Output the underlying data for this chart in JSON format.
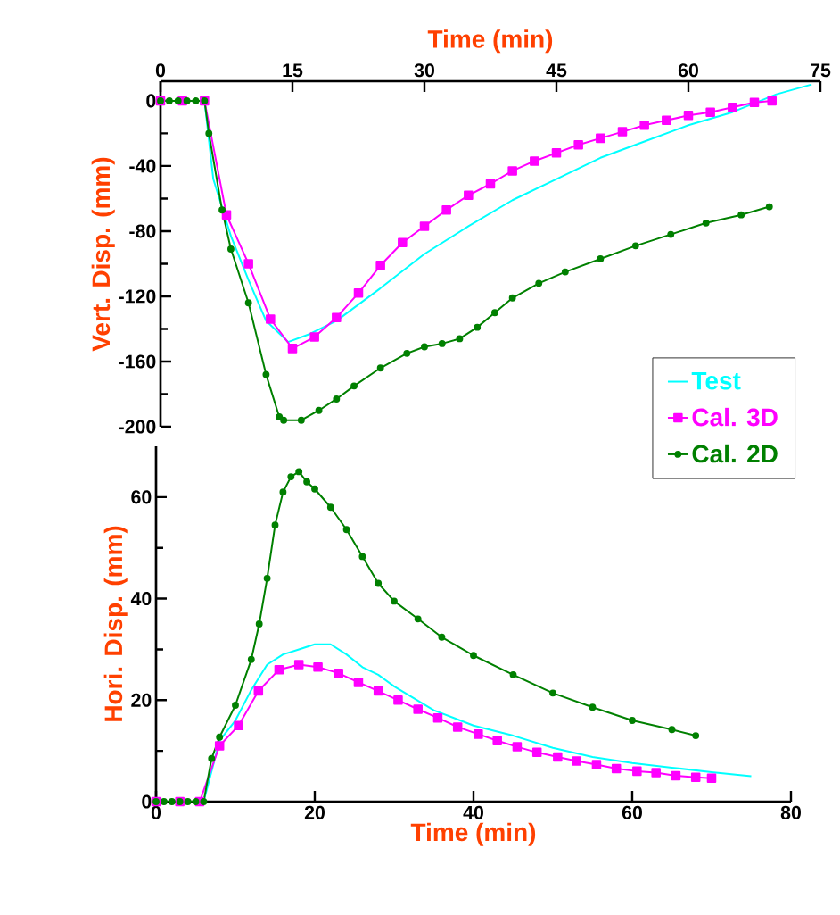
{
  "chart_data": [
    {
      "type": "line",
      "xlabel": "Time (min)",
      "ylabel": "Vert. Disp. (mm)",
      "xlim": [
        0,
        75
      ],
      "xticks": [
        0,
        15,
        30,
        45,
        60,
        75
      ],
      "ylim": [
        -200,
        12
      ],
      "yticks": [
        -200,
        -160,
        -120,
        -80,
        -40,
        0
      ],
      "legend": false,
      "series": [
        {
          "color": "#00ffff",
          "marker": "none",
          "x": [
            0,
            5,
            6,
            8,
            10,
            12,
            14.5,
            17,
            20,
            25,
            30,
            35,
            40,
            45,
            50,
            55,
            60,
            65,
            70,
            74
          ],
          "values": [
            0,
            0,
            -48,
            -83,
            -110,
            -135,
            -148,
            -143,
            -135,
            -115,
            -94,
            -77,
            -61,
            -48,
            -35,
            -25,
            -15,
            -7,
            4,
            10
          ]
        },
        {
          "color": "#ff00ff",
          "marker": "square",
          "x": [
            0,
            2.5,
            5,
            7.5,
            10,
            12.5,
            15,
            17.5,
            20,
            22.5,
            25,
            27.5,
            30,
            32.5,
            35,
            37.5,
            40,
            42.5,
            45,
            47.5,
            50,
            52.5,
            55,
            57.5,
            60,
            62.5,
            65,
            67.5,
            69.5
          ],
          "values": [
            0,
            0,
            0,
            -70,
            -100,
            -134,
            -152,
            -145,
            -133,
            -118,
            -101,
            -87,
            -77,
            -67,
            -58,
            -51,
            -43,
            -37,
            -32,
            -27,
            -23,
            -19,
            -15,
            -12,
            -9,
            -7,
            -4,
            -1,
            0
          ]
        },
        {
          "color": "#008000",
          "marker": "circle",
          "x": [
            0,
            1,
            2,
            3,
            4,
            5,
            5.5,
            7,
            8,
            10,
            12,
            13.5,
            14,
            16,
            18,
            20,
            22,
            25,
            28,
            30,
            32,
            34,
            36,
            38,
            40,
            43,
            46,
            50,
            54,
            58,
            62,
            66,
            69.2
          ],
          "values": [
            0,
            0,
            0,
            0,
            0,
            0,
            -20,
            -67,
            -91,
            -124,
            -168,
            -194,
            -196,
            -196,
            -190,
            -183,
            -175,
            -164,
            -155,
            -151,
            -149,
            -146,
            -139,
            -130,
            -121,
            -112,
            -105,
            -97,
            -89,
            -82,
            -75,
            -70,
            -65
          ]
        }
      ]
    },
    {
      "type": "line",
      "xlabel": "Time (min)",
      "ylabel": "Hori. Disp. (mm)",
      "xlim": [
        0,
        80
      ],
      "xticks": [
        0,
        20,
        40,
        60,
        80
      ],
      "ylim": [
        0,
        70
      ],
      "yticks": [
        0,
        20,
        40,
        60
      ],
      "legend": "top right",
      "series": [
        {
          "name": "Test",
          "color": "#00ffff",
          "marker": "none",
          "x": [
            0,
            6,
            8,
            10,
            12,
            14,
            16,
            18,
            20,
            22,
            24,
            26,
            28,
            30,
            35,
            40,
            45,
            50,
            55,
            60,
            65,
            70,
            75
          ],
          "values": [
            0,
            0,
            12,
            16,
            22,
            27,
            29,
            30,
            31,
            31,
            29,
            26.5,
            25,
            22.7,
            18,
            15,
            13,
            10.6,
            8.8,
            7.6,
            6.7,
            5.8,
            5
          ]
        },
        {
          "name": "Cal. 3D",
          "color": "#ff00ff",
          "marker": "square",
          "x": [
            0,
            3,
            5.5,
            8,
            10.4,
            12.9,
            15.5,
            18,
            20.4,
            23,
            25.5,
            28,
            30.5,
            33,
            35.5,
            38,
            40.6,
            43,
            45.5,
            48,
            50.6,
            53,
            55.5,
            58,
            60.6,
            63,
            65.5,
            68,
            70
          ],
          "values": [
            0,
            0,
            0,
            11,
            15,
            21.8,
            26,
            27,
            26.5,
            25.3,
            23.5,
            21.8,
            20,
            18.2,
            16.5,
            14.7,
            13.3,
            12,
            10.8,
            9.7,
            8.8,
            8,
            7.3,
            6.5,
            6,
            5.7,
            5.1,
            4.8,
            4.6
          ]
        },
        {
          "name": "Cal. 2D",
          "color": "#008000",
          "marker": "circle",
          "x": [
            0,
            1,
            2,
            3,
            4,
            5,
            6,
            7,
            8,
            10,
            12,
            13,
            14,
            15,
            16,
            17,
            18,
            19,
            20,
            22,
            24,
            26,
            28,
            30,
            33,
            36,
            40,
            45,
            50,
            55,
            60,
            65,
            68
          ],
          "values": [
            0,
            0,
            0,
            0,
            0,
            0,
            0,
            8.5,
            12.7,
            19,
            28,
            35,
            44,
            54.5,
            61,
            64,
            65,
            63,
            61.6,
            58,
            53.6,
            48.3,
            43,
            39.5,
            36,
            32.4,
            28.8,
            25,
            21.4,
            18.6,
            16,
            14.2,
            13
          ]
        }
      ]
    }
  ]
}
